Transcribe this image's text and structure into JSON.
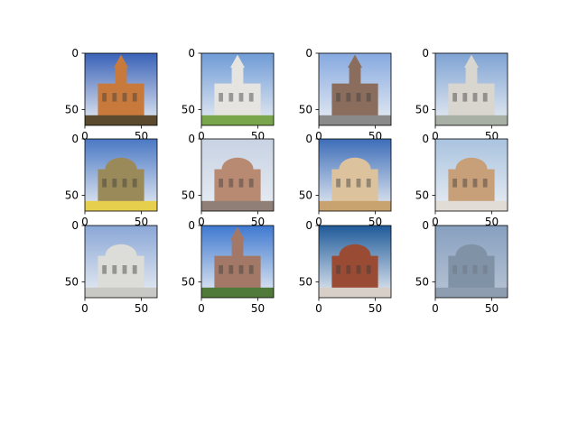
{
  "chart_data": {
    "type": "image-grid",
    "rows": 3,
    "cols": 4,
    "xlim": [
      0,
      64
    ],
    "ylim": [
      64,
      0
    ],
    "xticks": [
      0,
      50
    ],
    "yticks": [
      0,
      50
    ],
    "panels": [
      {
        "row": 0,
        "col": 0,
        "subject": "ornate church with tall spire",
        "sky": "#3a62b8",
        "bldg": "#c77a3c",
        "ground": "#5b4a2e"
      },
      {
        "row": 0,
        "col": 1,
        "subject": "white church tower with trees",
        "sky": "#6f9bd6",
        "bldg": "#e6e4e1",
        "ground": "#7aa64b"
      },
      {
        "row": 0,
        "col": 2,
        "subject": "church with pointed spire",
        "sky": "#86a9e0",
        "bldg": "#8a6d5d",
        "ground": "#8a8a8a"
      },
      {
        "row": 0,
        "col": 3,
        "subject": "pale cathedral tower",
        "sky": "#7fa3d3",
        "bldg": "#d9d5cf",
        "ground": "#a8b0a6"
      },
      {
        "row": 1,
        "col": 0,
        "subject": "domed building behind yellow wall",
        "sky": "#4a78c4",
        "bldg": "#9a8a5a",
        "ground": "#e6cf4c"
      },
      {
        "row": 1,
        "col": 1,
        "subject": "domed basilica",
        "sky": "#c7d2e3",
        "bldg": "#b88a72",
        "ground": "#8f7f77"
      },
      {
        "row": 1,
        "col": 2,
        "subject": "classical palace facade",
        "sky": "#3d6db8",
        "bldg": "#dcc39e",
        "ground": "#c9a36f"
      },
      {
        "row": 1,
        "col": 3,
        "subject": "large domed church",
        "sky": "#a9c3df",
        "bldg": "#c79f78",
        "ground": "#e1dcd5"
      },
      {
        "row": 2,
        "col": 0,
        "subject": "white pavilion building",
        "sky": "#8aa7d6",
        "bldg": "#dcdcd8",
        "ground": "#c8c8c4"
      },
      {
        "row": 2,
        "col": 1,
        "subject": "building with clock tower and lawn",
        "sky": "#3f79d0",
        "bldg": "#a37866",
        "ground": "#4f7a3a"
      },
      {
        "row": 2,
        "col": 2,
        "subject": "gothic building under dark blue sky",
        "sky": "#1f5a99",
        "bldg": "#9a4b34",
        "ground": "#d8cfc8"
      },
      {
        "row": 2,
        "col": 3,
        "subject": "blurry building",
        "sky": "#7d9ec4",
        "bldg": "#6e7e8c",
        "ground": "#8f98a3"
      }
    ]
  }
}
